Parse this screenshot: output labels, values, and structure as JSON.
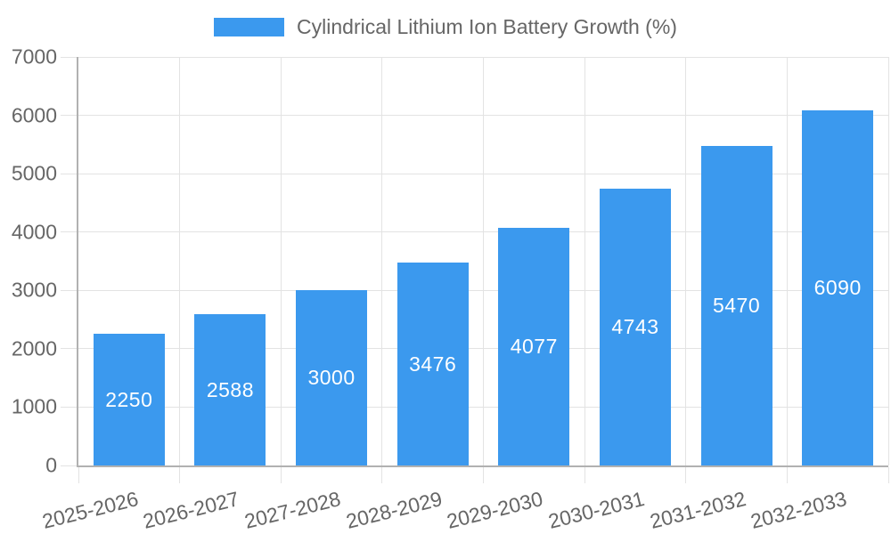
{
  "chart_data": {
    "type": "bar",
    "title": "Cylindrical Lithium Ion Battery Growth (%)",
    "categories": [
      "2025-2026",
      "2026-2027",
      "2027-2028",
      "2028-2029",
      "2029-2030",
      "2030-2031",
      "2031-2032",
      "2032-2033"
    ],
    "values": [
      2250,
      2588,
      3000,
      3476,
      4077,
      4743,
      5470,
      6090
    ],
    "series": [
      {
        "name": "Cylindrical Lithium Ion Battery Growth (%)",
        "values": [
          2250,
          2588,
          3000,
          3476,
          4077,
          4743,
          5470,
          6090
        ]
      }
    ],
    "xlabel": "",
    "ylabel": "",
    "ylim": [
      0,
      7000
    ],
    "yticks": [
      0,
      1000,
      2000,
      3000,
      4000,
      5000,
      6000,
      7000
    ],
    "grid": true,
    "legend_position": "top-center",
    "bar_labels_inside": true,
    "colors": {
      "bar": "#3b99ee",
      "bar_label": "#ffffff",
      "text": "#666666",
      "gridline": "#e3e3e3",
      "axis": "#b1b1b1",
      "background": "#ffffff"
    }
  }
}
